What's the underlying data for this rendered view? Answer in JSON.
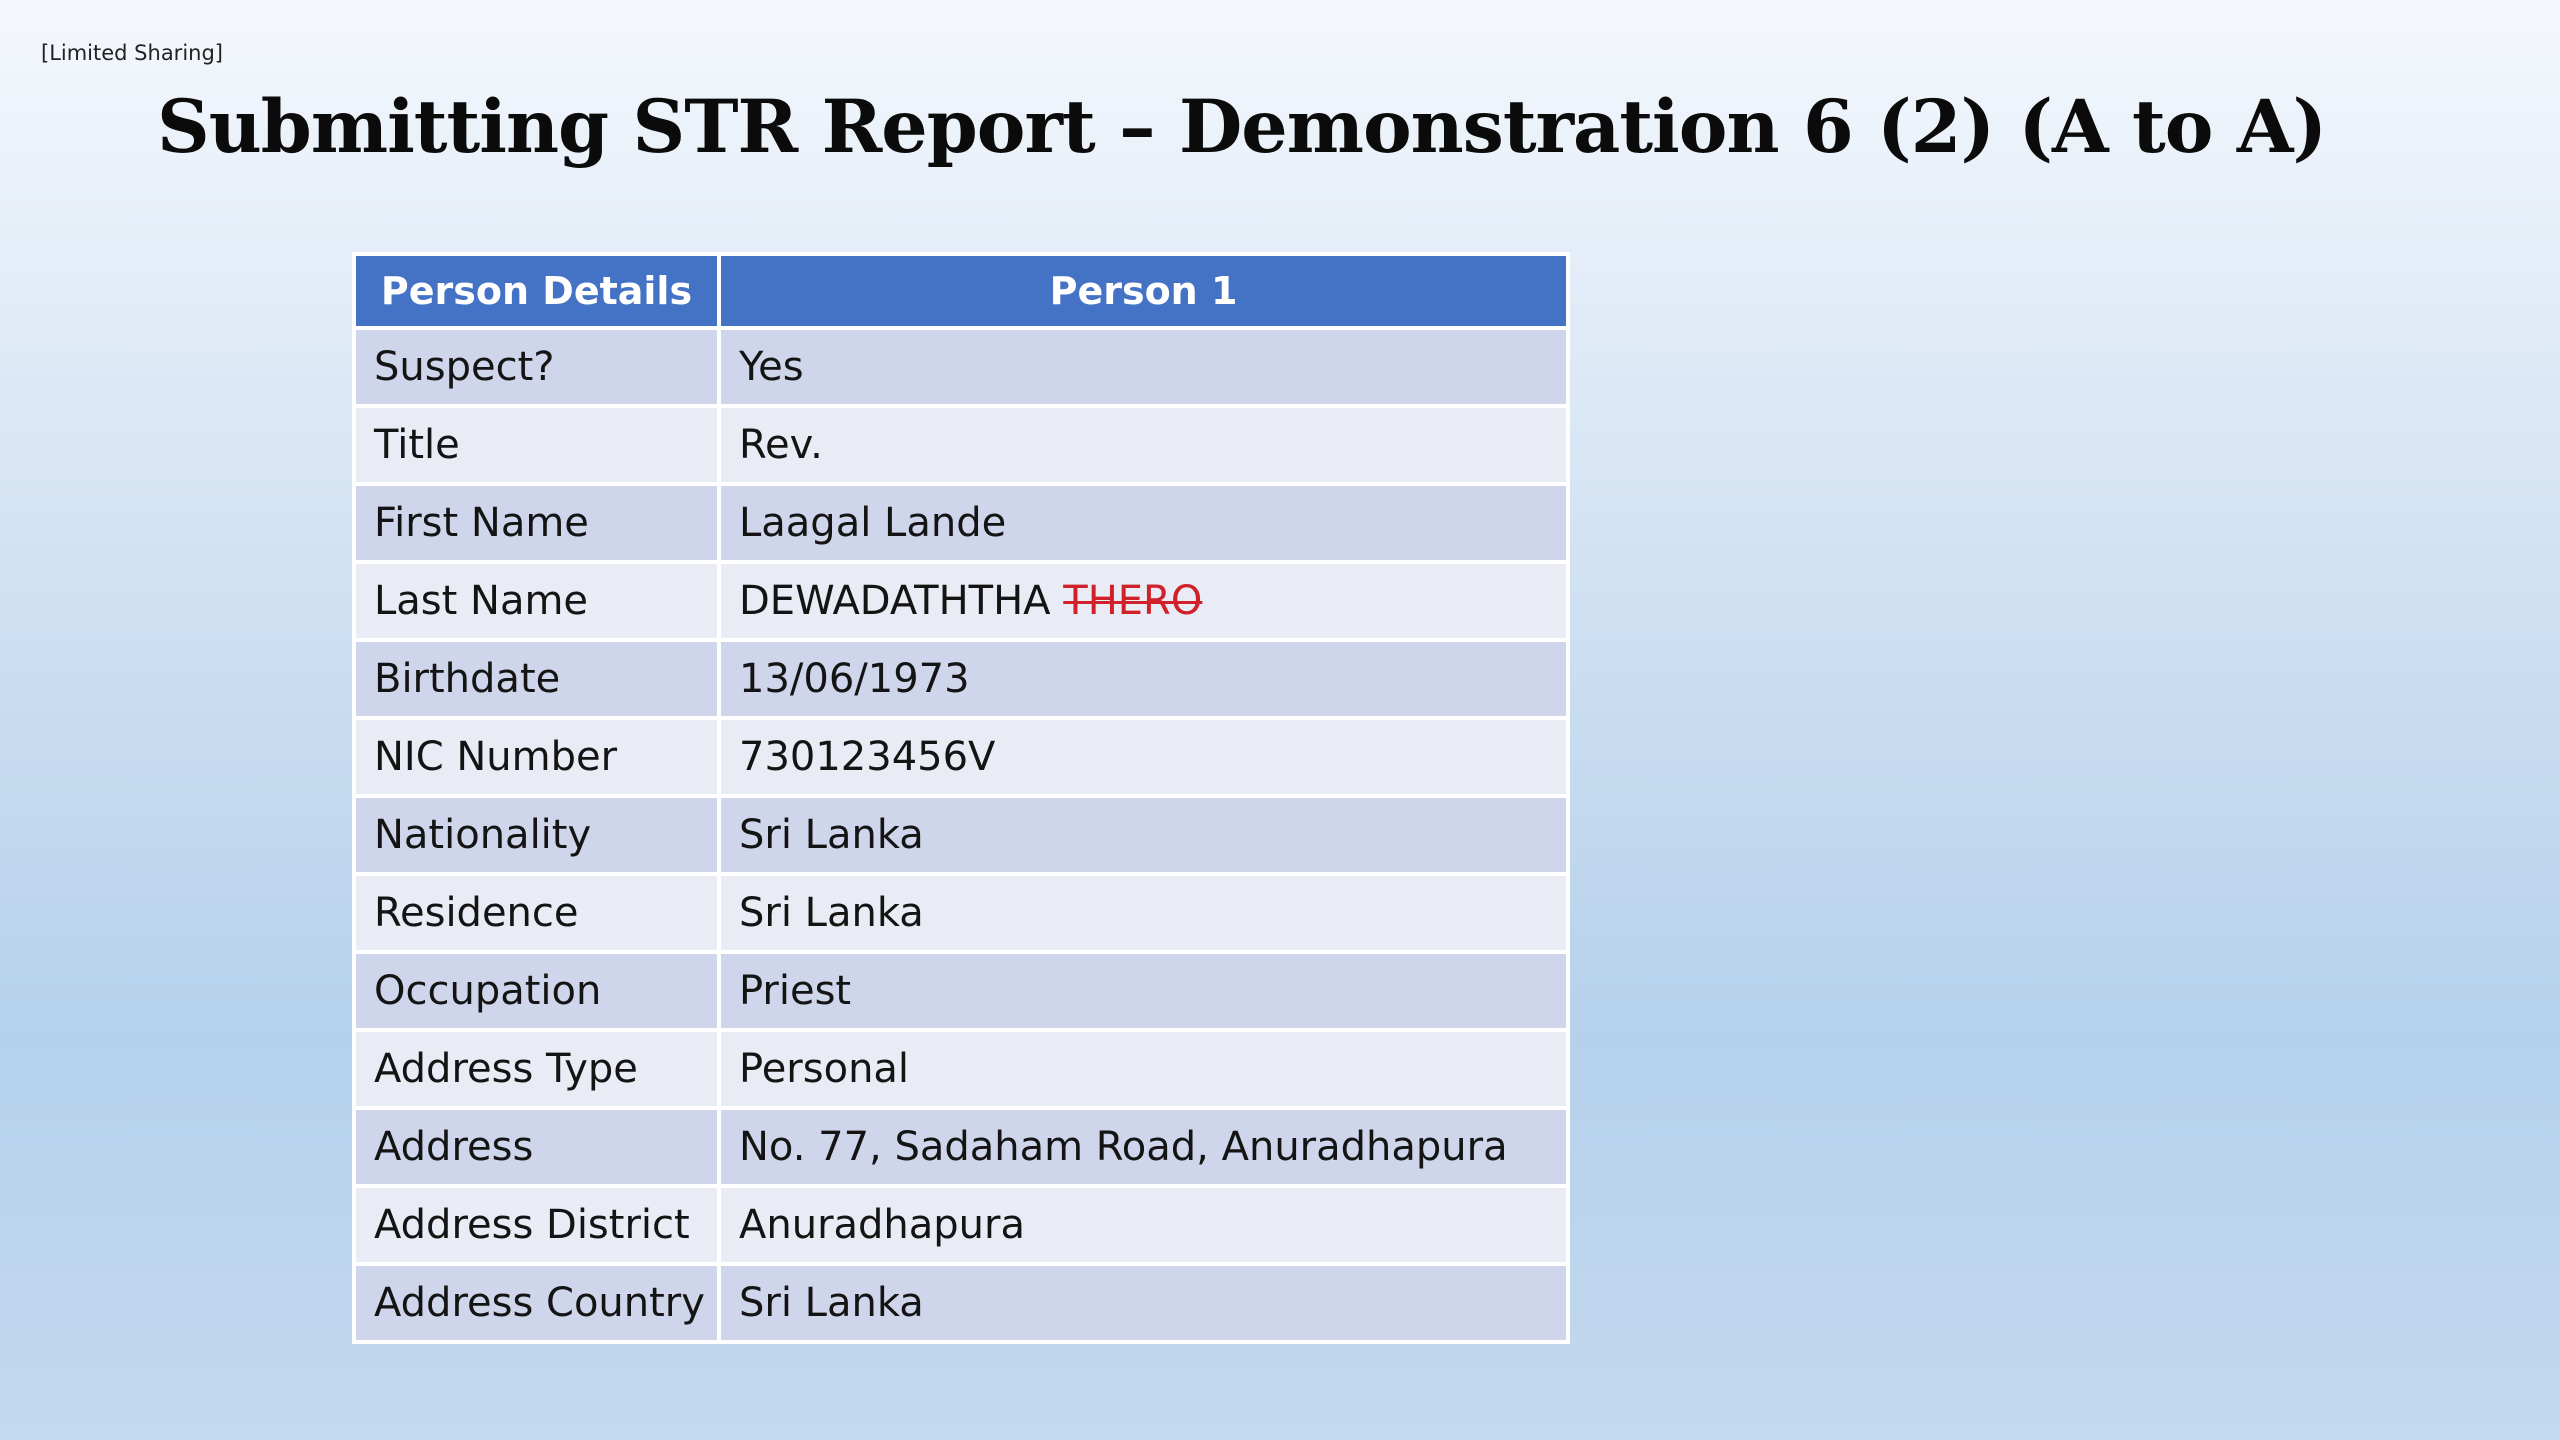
{
  "slide": {
    "sharing_tag": "[Limited Sharing]",
    "title": "Submitting STR Report – Demonstration 6 (2) (A to A)"
  },
  "table": {
    "headers": [
      "Person Details",
      "Person 1"
    ],
    "rows": [
      {
        "label": "Suspect?",
        "value": "Yes"
      },
      {
        "label": "Title",
        "value": "Rev."
      },
      {
        "label": "First Name",
        "value": "Laagal Lande"
      },
      {
        "label": "Last Name",
        "value": "DEWADATHTHA",
        "struck": "THERO"
      },
      {
        "label": "Birthdate",
        "value": "13/06/1973"
      },
      {
        "label": "NIC Number",
        "value": "730123456V"
      },
      {
        "label": "Nationality",
        "value": "Sri Lanka"
      },
      {
        "label": "Residence",
        "value": "Sri Lanka"
      },
      {
        "label": "Occupation",
        "value": "Priest"
      },
      {
        "label": "Address Type",
        "value": "Personal"
      },
      {
        "label": "Address",
        "value": "No. 77, Sadaham Road, Anuradhapura"
      },
      {
        "label": "Address District",
        "value": "Anuradhapura"
      },
      {
        "label": "Address Country",
        "value": "Sri Lanka"
      }
    ]
  },
  "colors": {
    "header_bg": "#4472c4",
    "row_odd": "#cfd5ea",
    "row_even": "#e9ebf5",
    "strike_text": "#d0202a"
  }
}
